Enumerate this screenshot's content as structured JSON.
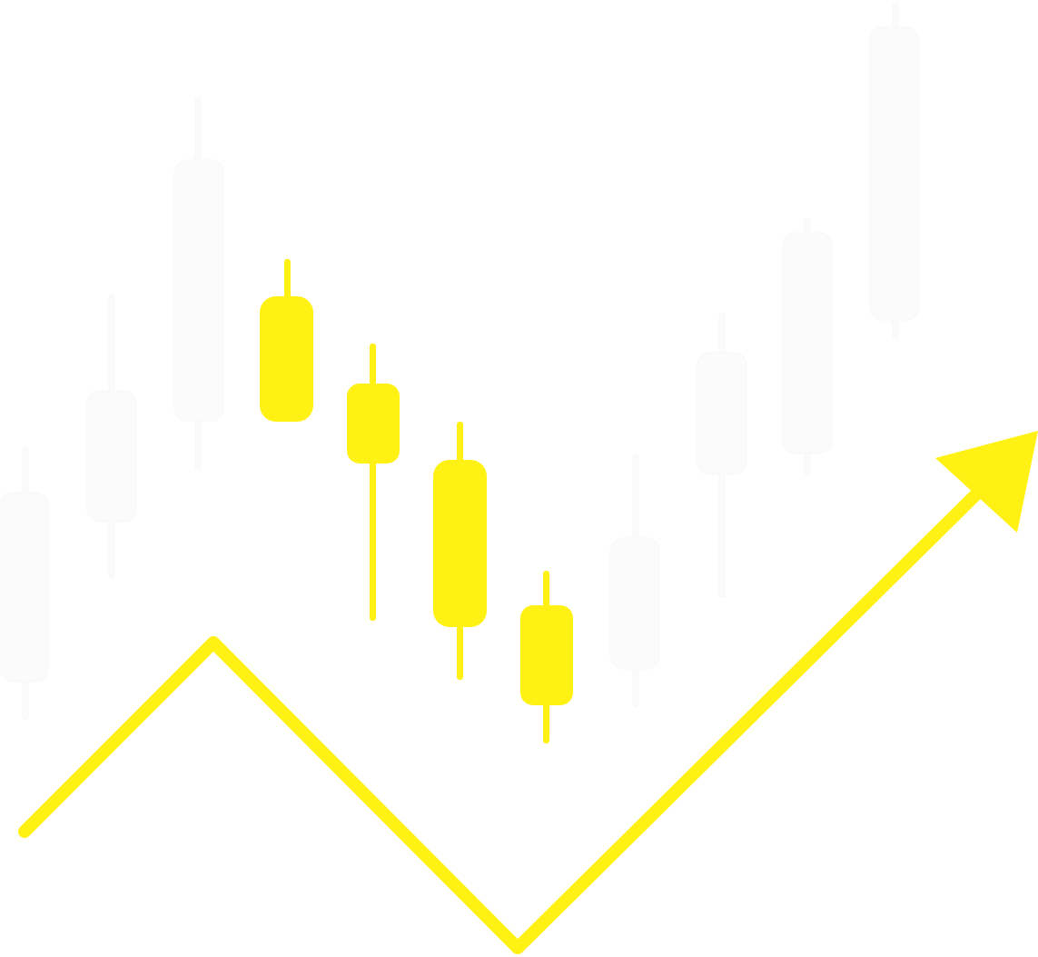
{
  "graphic": {
    "name": "candlestick-trend-illustration",
    "colors": {
      "background": "#ffffff",
      "accent": "#FFF113",
      "faint": "#FBFBFB"
    },
    "icons": [
      "candlestick-icon",
      "trend-arrow-icon"
    ]
  }
}
